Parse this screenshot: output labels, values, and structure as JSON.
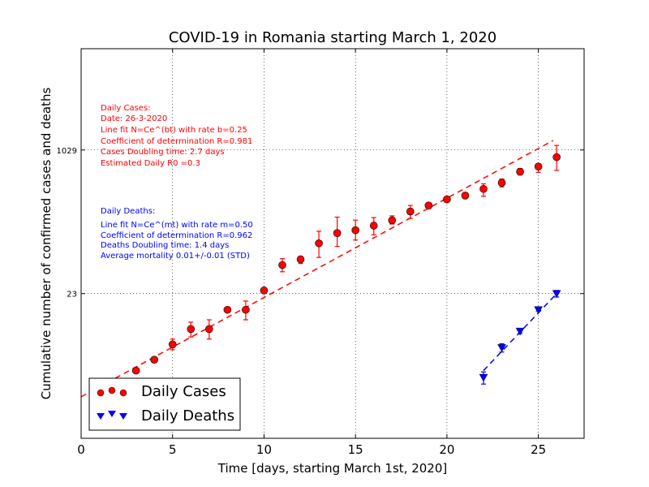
{
  "chart_data": {
    "type": "scatter",
    "title": "COVID-19 in Romania starting March 1, 2020",
    "xlabel": "Time [days, starting March 1st, 2020]",
    "ylabel": "Cumulative number of confirmed cases and deaths",
    "xlim": [
      0,
      27.5
    ],
    "y_scale": "log",
    "ylim": [
      0.5,
      15000
    ],
    "x_ticks": [
      0,
      5,
      10,
      15,
      20,
      25
    ],
    "y_ticks": [
      {
        "value": 23,
        "label": "23"
      },
      {
        "value": 1029,
        "label": "1029"
      }
    ],
    "grid": true,
    "legend_position": "lower-left",
    "series": [
      {
        "name": "Daily Cases",
        "color": "#ff0000",
        "marker": "circle",
        "x": [
          3,
          4,
          5,
          6,
          7,
          8,
          9,
          10,
          11,
          12,
          13,
          14,
          15,
          16,
          17,
          18,
          19,
          20,
          21,
          22,
          23,
          24,
          25,
          26
        ],
        "y": [
          3,
          4,
          6,
          9,
          9,
          15,
          15,
          25,
          49,
          57,
          87,
          114,
          123,
          139,
          160,
          202,
          237,
          278,
          308,
          367,
          433,
          579,
          663,
          850
        ],
        "err_low": [
          3,
          4,
          5.2,
          7.3,
          6.9,
          14,
          11.5,
          25,
          41,
          51,
          60,
          80,
          95,
          109,
          145,
          168,
          218,
          267,
          285,
          302,
          387,
          531,
          570,
          600
        ],
        "err_high": [
          3,
          4,
          6.9,
          10.8,
          11.5,
          15.7,
          18.9,
          26,
          58,
          61,
          120,
          174,
          161,
          172,
          180,
          237,
          255,
          292,
          329,
          420,
          477,
          629,
          716,
          1160
        ]
      },
      {
        "name": "Daily Deaths",
        "color": "#0000ff",
        "marker": "triangle-down",
        "x": [
          22,
          23,
          24,
          25,
          26
        ],
        "y": [
          2.5,
          5.5,
          8.5,
          15,
          23
        ],
        "err_low": [
          2.1,
          4.9,
          8.0,
          14.5,
          21
        ],
        "err_high": [
          2.9,
          6.1,
          9.0,
          15.5,
          25
        ]
      }
    ],
    "fits": [
      {
        "series": "Daily Cases",
        "color": "#ff0000",
        "x": [
          0,
          25.8
        ],
        "y": [
          1.5,
          1320
        ]
      },
      {
        "series": "Daily Deaths",
        "color": "#0000ff",
        "x": [
          22,
          26
        ],
        "y": [
          3.0,
          23
        ]
      }
    ],
    "annotations": {
      "cases": {
        "color": "#ff0000",
        "lines": [
          "Daily Cases:",
          "Date: 26-3-2020",
          "Line fit N=Ce^(bt) with rate b=0.25",
          "Coefficient of determination R=0.981",
          "Cases Doubling time: 2.7 days",
          "Estimated Daily R0 =0.3"
        ]
      },
      "deaths": {
        "color": "#0000ff",
        "lines": [
          "Daily Deaths:",
          "Line fit N=Ce^(mt) with rate m=0.50",
          "Coefficient of determination R=0.962",
          "Deaths Doubling time: 1.4 days",
          "Average mortality 0.01+/-0.01 (STD)"
        ]
      }
    }
  }
}
